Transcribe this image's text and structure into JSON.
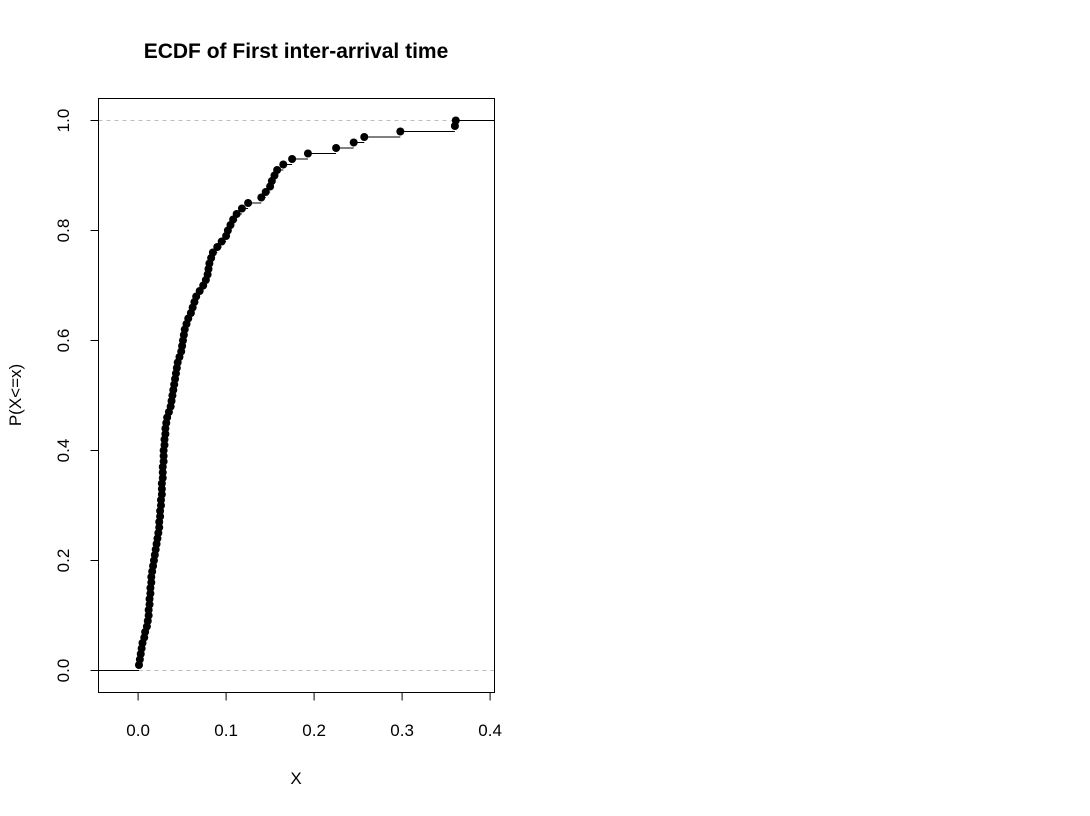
{
  "chart_data": {
    "type": "scatter",
    "subtype": "ecdf-step",
    "title": "ECDF of First inter-arrival time",
    "xlabel": "X",
    "ylabel": "P(X<=x)",
    "xlim": [
      -0.045,
      0.405
    ],
    "ylim": [
      -0.04,
      1.04
    ],
    "xticks": [
      0.0,
      0.1,
      0.2,
      0.3,
      0.4
    ],
    "xtick_labels": [
      "0.0",
      "0.1",
      "0.2",
      "0.3",
      "0.4"
    ],
    "yticks": [
      0.0,
      0.2,
      0.4,
      0.6,
      0.8,
      1.0
    ],
    "ytick_labels": [
      "0.0",
      "0.2",
      "0.4",
      "0.6",
      "0.8",
      "1.0"
    ],
    "reference_lines": [
      0,
      1
    ],
    "grid": false,
    "legend": "none",
    "n": 100,
    "x": [
      0.001,
      0.002,
      0.003,
      0.004,
      0.005,
      0.007,
      0.008,
      0.01,
      0.011,
      0.012,
      0.012,
      0.013,
      0.013,
      0.014,
      0.014,
      0.015,
      0.015,
      0.016,
      0.017,
      0.018,
      0.019,
      0.02,
      0.021,
      0.022,
      0.023,
      0.024,
      0.024,
      0.025,
      0.025,
      0.026,
      0.026,
      0.027,
      0.027,
      0.027,
      0.028,
      0.028,
      0.028,
      0.029,
      0.029,
      0.029,
      0.03,
      0.03,
      0.031,
      0.031,
      0.032,
      0.033,
      0.035,
      0.037,
      0.038,
      0.039,
      0.04,
      0.041,
      0.042,
      0.043,
      0.044,
      0.045,
      0.047,
      0.049,
      0.05,
      0.051,
      0.052,
      0.053,
      0.055,
      0.057,
      0.06,
      0.062,
      0.064,
      0.066,
      0.07,
      0.074,
      0.077,
      0.079,
      0.08,
      0.081,
      0.083,
      0.085,
      0.09,
      0.095,
      0.1,
      0.102,
      0.105,
      0.108,
      0.112,
      0.118,
      0.125,
      0.14,
      0.145,
      0.15,
      0.152,
      0.155,
      0.158,
      0.165,
      0.175,
      0.193,
      0.225,
      0.245,
      0.257,
      0.298,
      0.36,
      0.361
    ],
    "y": [
      0.01,
      0.02,
      0.03,
      0.04,
      0.05,
      0.06,
      0.07,
      0.08,
      0.09,
      0.1,
      0.11,
      0.12,
      0.13,
      0.14,
      0.15,
      0.16,
      0.17,
      0.18,
      0.19,
      0.2,
      0.21,
      0.22,
      0.23,
      0.24,
      0.25,
      0.26,
      0.27,
      0.28,
      0.29,
      0.3,
      0.31,
      0.32,
      0.33,
      0.34,
      0.35,
      0.36,
      0.37,
      0.38,
      0.39,
      0.4,
      0.41,
      0.42,
      0.43,
      0.44,
      0.45,
      0.46,
      0.47,
      0.48,
      0.49,
      0.5,
      0.51,
      0.52,
      0.53,
      0.54,
      0.55,
      0.56,
      0.57,
      0.58,
      0.59,
      0.6,
      0.61,
      0.62,
      0.63,
      0.64,
      0.65,
      0.66,
      0.67,
      0.68,
      0.69,
      0.7,
      0.71,
      0.72,
      0.73,
      0.74,
      0.75,
      0.76,
      0.77,
      0.78,
      0.79,
      0.8,
      0.81,
      0.82,
      0.83,
      0.84,
      0.85,
      0.86,
      0.87,
      0.88,
      0.89,
      0.9,
      0.91,
      0.92,
      0.93,
      0.94,
      0.95,
      0.96,
      0.97,
      0.98,
      0.99,
      1.0
    ],
    "colors": {
      "points": "#000000",
      "steps": "#000000",
      "reference": "#bebebe",
      "frame": "#000000"
    }
  }
}
